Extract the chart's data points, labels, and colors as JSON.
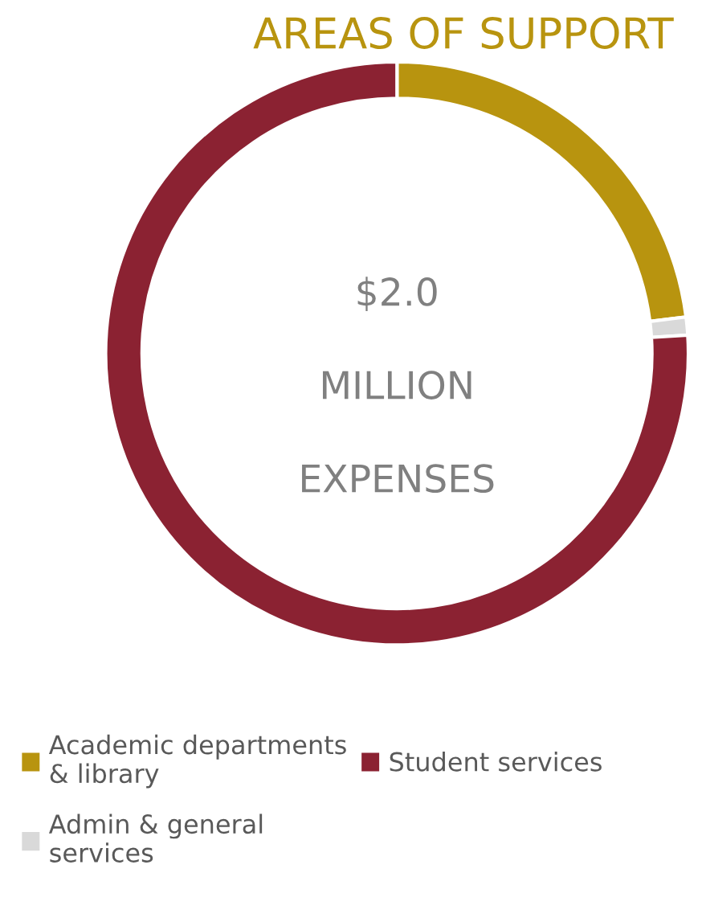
{
  "chart_data": {
    "type": "donut",
    "title": "AREAS OF SUPPORT",
    "categories": [
      "Academic departments & library",
      "Admin & general services",
      "Student services"
    ],
    "values": [
      23,
      1,
      76
    ],
    "colors": [
      "#b8940f",
      "#d9d9d9",
      "#8b2232"
    ],
    "annotations": [
      "$2.0",
      "MILLION",
      "EXPENSES"
    ],
    "legend": "bottom"
  }
}
